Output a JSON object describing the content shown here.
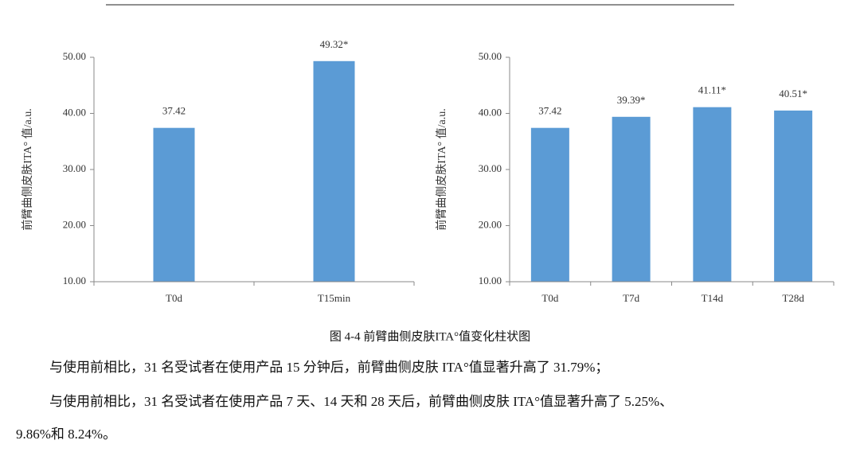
{
  "chart_data": [
    {
      "type": "bar",
      "y_label": "前臂曲侧皮肤ITA° 值/a.u.",
      "categories": [
        "T0d",
        "T15min"
      ],
      "values": [
        37.42,
        49.32
      ],
      "value_labels": [
        "37.42",
        "49.32*"
      ],
      "color": "#5b9bd5",
      "ylim": [
        10,
        50
      ],
      "yticks": [
        {
          "value": 10,
          "label": "10.00"
        },
        {
          "value": 20,
          "label": "20.00"
        },
        {
          "value": 30,
          "label": "30.00"
        },
        {
          "value": 40,
          "label": "40.00"
        },
        {
          "value": 50,
          "label": "50.00"
        }
      ]
    },
    {
      "type": "bar",
      "y_label": "前臂曲侧皮肤ITA° 值/a.u.",
      "categories": [
        "T0d",
        "T7d",
        "T14d",
        "T28d"
      ],
      "values": [
        37.42,
        39.39,
        41.11,
        40.51
      ],
      "value_labels": [
        "37.42",
        "39.39*",
        "41.11*",
        "40.51*"
      ],
      "color": "#5b9bd5",
      "ylim": [
        10,
        50
      ],
      "yticks": [
        {
          "value": 10,
          "label": "10.00"
        },
        {
          "value": 20,
          "label": "20.00"
        },
        {
          "value": 30,
          "label": "30.00"
        },
        {
          "value": 40,
          "label": "40.00"
        },
        {
          "value": 50,
          "label": "50.00"
        }
      ]
    }
  ],
  "caption": "图 4-4 前臂曲侧皮肤ITA°值变化柱状图",
  "paragraphs": [
    [
      "与使用前相比，31 名受试者在使用产品 15 分钟后，前臂曲侧皮肤 ITA°值显著升高了 31.79%；"
    ],
    [
      "与使用前相比，31 名受试者在使用产品 7 天、14 天和 28 天后，前臂曲侧皮肤 ITA°值显著升高了 5.25%、",
      "9.86%和 8.24%。"
    ]
  ]
}
